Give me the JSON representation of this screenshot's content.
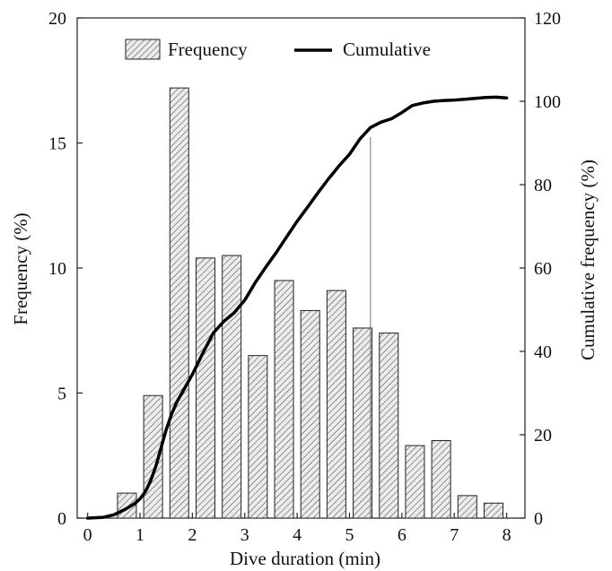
{
  "chart_data": {
    "type": "bar",
    "title": "",
    "xlabel": "Dive duration (min)",
    "ylabel": "Frequency (%)",
    "y2label": "Cumulative frequency (%)",
    "xlim": [
      -0.2,
      8.35
    ],
    "ylim": [
      0,
      20
    ],
    "y2lim": [
      0,
      120
    ],
    "xticks": [
      "0",
      "1",
      "2",
      "3",
      "4",
      "5",
      "6",
      "7",
      "8"
    ],
    "yticks": [
      "0",
      "5",
      "10",
      "15",
      "20"
    ],
    "y2ticks": [
      "0",
      "20",
      "40",
      "60",
      "80",
      "100",
      "120"
    ],
    "legend_position": "top",
    "grid": false,
    "series": [
      {
        "name": "Frequency",
        "kind": "bar",
        "color": "#555555",
        "pattern": "diagonal-hatch",
        "x": [
          0.75,
          1.25,
          1.75,
          2.25,
          2.75,
          3.25,
          3.75,
          4.25,
          4.75,
          5.25,
          5.75,
          6.25,
          6.75,
          7.25,
          7.75
        ],
        "values": [
          1.0,
          4.9,
          17.2,
          10.4,
          10.5,
          6.5,
          9.5,
          8.3,
          9.1,
          7.6,
          7.4,
          2.9,
          3.1,
          0.9,
          0.6
        ]
      },
      {
        "name": "Cumulative",
        "kind": "line",
        "axis": "right",
        "color": "#000000",
        "x": [
          0,
          0.3,
          0.5,
          0.7,
          0.9,
          1.0,
          1.1,
          1.2,
          1.3,
          1.4,
          1.5,
          1.6,
          1.7,
          1.8,
          2.0,
          2.2,
          2.4,
          2.6,
          2.8,
          3.0,
          3.2,
          3.4,
          3.6,
          3.8,
          4.0,
          4.2,
          4.4,
          4.6,
          4.8,
          5.0,
          5.2,
          5.4,
          5.6,
          5.8,
          6.0,
          6.2,
          6.4,
          6.6,
          6.8,
          7.0,
          7.2,
          7.4,
          7.6,
          7.8,
          8.0
        ],
        "values": [
          0,
          0.2,
          0.8,
          2.0,
          3.5,
          4.6,
          6.3,
          8.9,
          12.3,
          16.8,
          21.2,
          24.9,
          27.8,
          30.0,
          34.5,
          39.6,
          44.4,
          47.2,
          49.3,
          52.3,
          56.5,
          60.2,
          63.7,
          67.5,
          71.2,
          74.6,
          78.1,
          81.4,
          84.5,
          87.3,
          91.0,
          93.7,
          95.0,
          95.8,
          97.3,
          99.0,
          99.6,
          100.0,
          100.2,
          100.3,
          100.5,
          100.7,
          100.9,
          101.0,
          100.8
        ]
      }
    ],
    "annotations": [
      {
        "kind": "vertical-line",
        "x": 5.4,
        "from_y2": 0,
        "to_y2": 91.4
      }
    ]
  }
}
